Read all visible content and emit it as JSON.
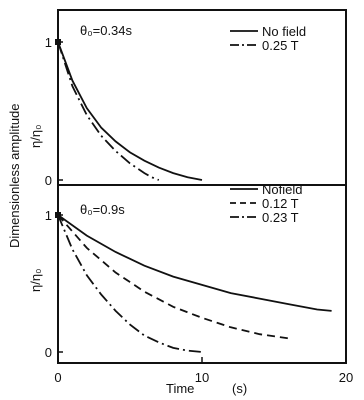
{
  "figure": {
    "ylabel_main": "Dimensionless amplitude",
    "ylabel_ratio": "η/η₀",
    "xlabel": "Time",
    "xunit": "(s)"
  },
  "chart_data": [
    {
      "type": "line",
      "annotation": "θ₀=0.34s",
      "xlim": [
        0,
        20
      ],
      "ylim": [
        0,
        1
      ],
      "yticks": [
        "0",
        "1"
      ],
      "xticks": [],
      "series": [
        {
          "name": "No field",
          "style": "solid",
          "x": [
            0,
            1,
            2,
            3,
            4,
            5,
            6,
            7,
            8,
            9,
            9.5,
            10
          ],
          "y": [
            1,
            0.72,
            0.52,
            0.38,
            0.28,
            0.2,
            0.14,
            0.09,
            0.05,
            0.02,
            0.01,
            0
          ]
        },
        {
          "name": "0.25 T",
          "style": "dashdot",
          "x": [
            0,
            1,
            2,
            3,
            4,
            5,
            6,
            6.5,
            7
          ],
          "y": [
            1,
            0.68,
            0.47,
            0.32,
            0.21,
            0.12,
            0.05,
            0.02,
            0
          ]
        }
      ]
    },
    {
      "type": "line",
      "annotation": "θ₀=0.9s",
      "xlim": [
        0,
        20
      ],
      "ylim": [
        0,
        1
      ],
      "yticks": [
        "0",
        "1"
      ],
      "xticks": [
        "0",
        "10",
        "20"
      ],
      "series": [
        {
          "name": "Nofield",
          "style": "solid",
          "x": [
            0,
            2,
            4,
            6,
            8,
            10,
            12,
            14,
            16,
            18,
            19
          ],
          "y": [
            1,
            0.85,
            0.73,
            0.63,
            0.55,
            0.49,
            0.43,
            0.39,
            0.35,
            0.31,
            0.3
          ]
        },
        {
          "name": "0.12 T",
          "style": "dashed",
          "x": [
            0,
            2,
            4,
            6,
            8,
            10,
            12,
            14,
            16
          ],
          "y": [
            1,
            0.76,
            0.58,
            0.44,
            0.33,
            0.25,
            0.18,
            0.13,
            0.1
          ]
        },
        {
          "name": "0.23 T",
          "style": "dashdot",
          "x": [
            0,
            1,
            2,
            3,
            4,
            5,
            6,
            7,
            8,
            9,
            10
          ],
          "y": [
            1,
            0.75,
            0.56,
            0.42,
            0.3,
            0.2,
            0.12,
            0.07,
            0.03,
            0.01,
            0
          ]
        }
      ]
    }
  ]
}
